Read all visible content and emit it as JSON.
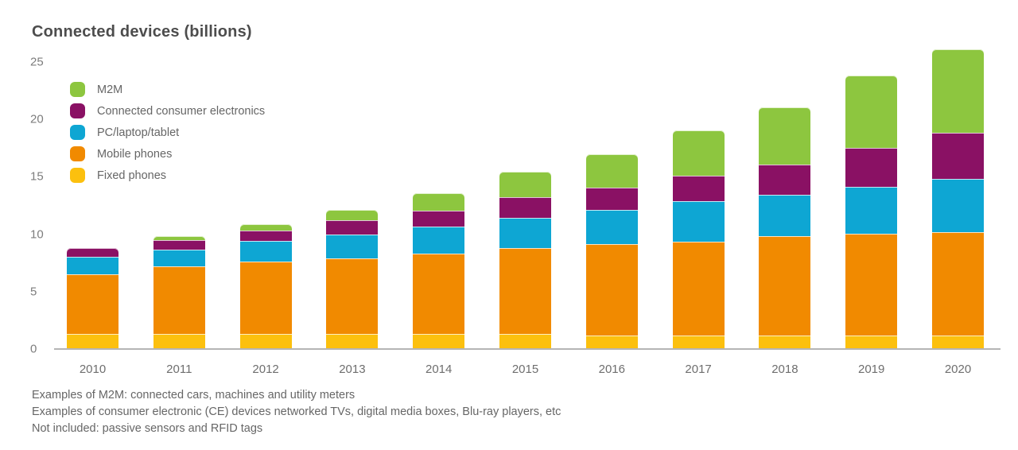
{
  "colors": {
    "green": "#8dc63f",
    "purple": "#8a1164",
    "blue": "#0ea6d3",
    "orange": "#f18a00",
    "yellow": "#fcc00e",
    "axis": "#b5b5b5"
  },
  "footnotes": [
    "Examples of M2M: connected cars, machines and utility meters",
    "Examples of consumer electronic (CE) devices networked TVs, digital media boxes, Blu-ray players, etc",
    "Not included: passive sensors and RFID tags"
  ],
  "chart_data": {
    "type": "bar",
    "stacked": true,
    "title": "Connected devices (billions)",
    "grid": false,
    "legend_position": "upper-left",
    "ylim": [
      0,
      26.5
    ],
    "yticks": [
      0,
      5,
      10,
      15,
      20,
      25
    ],
    "categories": [
      "2010",
      "2011",
      "2012",
      "2013",
      "2014",
      "2015",
      "2016",
      "2017",
      "2018",
      "2019",
      "2020"
    ],
    "series": [
      {
        "name": "Fixed phones",
        "color_key": "yellow",
        "values": [
          1.3,
          1.3,
          1.3,
          1.3,
          1.3,
          1.3,
          1.15,
          1.15,
          1.15,
          1.15,
          1.15
        ]
      },
      {
        "name": "Mobile phones",
        "color_key": "orange",
        "values": [
          5.2,
          5.9,
          6.3,
          6.6,
          7.0,
          7.5,
          8.0,
          8.2,
          8.65,
          8.9,
          9.05
        ]
      },
      {
        "name": "PC/laptop/tablet",
        "color_key": "blue",
        "values": [
          1.5,
          1.45,
          1.85,
          2.1,
          2.35,
          2.65,
          3.0,
          3.5,
          3.65,
          4.1,
          4.6
        ]
      },
      {
        "name": "Connected consumer electronics",
        "color_key": "purple",
        "values": [
          0.8,
          0.85,
          0.9,
          1.2,
          1.4,
          1.8,
          1.9,
          2.25,
          2.6,
          3.4,
          4.0
        ]
      },
      {
        "name": "M2M",
        "color_key": "green",
        "values": [
          0,
          0.35,
          0.5,
          0.9,
          1.5,
          2.15,
          2.9,
          3.9,
          5.0,
          6.25,
          7.3
        ]
      }
    ],
    "legend_order": [
      "M2M",
      "Connected consumer electronics",
      "PC/laptop/tablet",
      "Mobile phones",
      "Fixed phones"
    ],
    "totals": [
      8.8,
      9.85,
      10.85,
      12.1,
      13.55,
      15.4,
      16.95,
      19.0,
      21.05,
      23.8,
      26.1
    ]
  }
}
